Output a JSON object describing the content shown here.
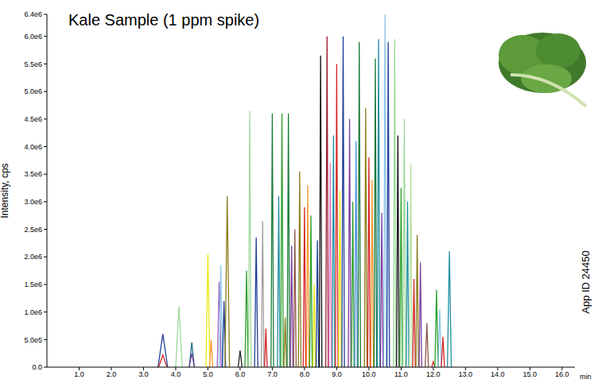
{
  "chart_data": {
    "type": "line",
    "title": "Kale Sample (1 ppm spike)",
    "x_label": "min",
    "y_label": "Intensity, cps",
    "annotations": [
      "App ID 24450"
    ],
    "xlim": [
      0,
      16.4
    ],
    "ylim": [
      0,
      6400000
    ],
    "xticks": [
      {
        "value": 1,
        "label": "1.0"
      },
      {
        "value": 2,
        "label": "2.0"
      },
      {
        "value": 3,
        "label": "3.0"
      },
      {
        "value": 4,
        "label": "4.0"
      },
      {
        "value": 5,
        "label": "5.0"
      },
      {
        "value": 6,
        "label": "6.0"
      },
      {
        "value": 7,
        "label": "7.0"
      },
      {
        "value": 8,
        "label": "8.0"
      },
      {
        "value": 9,
        "label": "9.0"
      },
      {
        "value": 10,
        "label": "10.0"
      },
      {
        "value": 11,
        "label": "11.0"
      },
      {
        "value": 12,
        "label": "12.0"
      },
      {
        "value": 13,
        "label": "13.0"
      },
      {
        "value": 14,
        "label": "14.0"
      },
      {
        "value": 15,
        "label": "15.0"
      },
      {
        "value": 16,
        "label": "16.0"
      }
    ],
    "yticks": [
      {
        "value": 0,
        "label": "0.0"
      },
      {
        "value": 500000,
        "label": "5.0e5"
      },
      {
        "value": 1000000,
        "label": "1.0e6"
      },
      {
        "value": 1500000,
        "label": "1.5e6"
      },
      {
        "value": 2000000,
        "label": "2.0e6"
      },
      {
        "value": 2500000,
        "label": "2.5e6"
      },
      {
        "value": 3000000,
        "label": "3.0e6"
      },
      {
        "value": 3500000,
        "label": "3.5e6"
      },
      {
        "value": 4000000,
        "label": "4.0e6"
      },
      {
        "value": 4500000,
        "label": "4.5e6"
      },
      {
        "value": 5000000,
        "label": "5.0e6"
      },
      {
        "value": 5500000,
        "label": "5.5e6"
      },
      {
        "value": 6000000,
        "label": "6.0e6"
      },
      {
        "value": 6400000,
        "label": "6.4e6"
      }
    ],
    "grid": false,
    "series": [
      {
        "color": "#1f3f99",
        "x": [
          3.45,
          3.6,
          3.75
        ],
        "values": [
          0,
          600000,
          0
        ]
      },
      {
        "color": "#d62728",
        "x": [
          3.47,
          3.6,
          3.73
        ],
        "values": [
          0,
          220000,
          0
        ]
      },
      {
        "color": "#9ed99a",
        "x": [
          4.0,
          4.1,
          4.2
        ],
        "values": [
          0,
          1100000,
          0
        ]
      },
      {
        "color": "#1f6f8b",
        "x": [
          4.42,
          4.5,
          4.58
        ],
        "values": [
          0,
          450000,
          0
        ]
      },
      {
        "color": "#7b3fa0",
        "x": [
          4.42,
          4.5,
          4.58
        ],
        "values": [
          0,
          250000,
          0
        ]
      },
      {
        "color": "#e8e816",
        "x": [
          4.94,
          5.0,
          5.06
        ],
        "values": [
          0,
          2050000,
          0
        ]
      },
      {
        "color": "#ff9933",
        "x": [
          5.05,
          5.1,
          5.15
        ],
        "values": [
          0,
          500000,
          0
        ]
      },
      {
        "color": "#9c5fc7",
        "x": [
          5.29,
          5.35,
          5.41
        ],
        "values": [
          0,
          1550000,
          0
        ]
      },
      {
        "color": "#8ec5e8",
        "x": [
          5.35,
          5.4,
          5.45
        ],
        "values": [
          0,
          1850000,
          0
        ]
      },
      {
        "color": "#1f3f99",
        "x": [
          5.45,
          5.5,
          5.55
        ],
        "values": [
          0,
          1200000,
          0
        ]
      },
      {
        "color": "#8b7d1a",
        "x": [
          5.53,
          5.6,
          5.67
        ],
        "values": [
          0,
          3100000,
          0
        ]
      },
      {
        "color": "#222222",
        "x": [
          5.94,
          6.0,
          6.06
        ],
        "values": [
          0,
          300000,
          0
        ]
      },
      {
        "color": "#2ca02c",
        "x": [
          6.15,
          6.2,
          6.25
        ],
        "values": [
          0,
          1750000,
          0
        ]
      },
      {
        "color": "#9ed99a",
        "x": [
          6.26,
          6.3,
          6.34
        ],
        "values": [
          0,
          4650000,
          0
        ]
      },
      {
        "color": "#1f3f99",
        "x": [
          6.45,
          6.5,
          6.55
        ],
        "values": [
          0,
          2350000,
          0
        ]
      },
      {
        "color": "#a0a0a0",
        "x": [
          6.66,
          6.7,
          6.74
        ],
        "values": [
          0,
          2650000,
          0
        ]
      },
      {
        "color": "#d62728",
        "x": [
          6.76,
          6.8,
          6.84
        ],
        "values": [
          0,
          700000,
          0
        ]
      },
      {
        "color": "#1a7a3a",
        "x": [
          6.96,
          7.0,
          7.04
        ],
        "values": [
          0,
          4600000,
          0
        ]
      },
      {
        "color": "#1f8fa0",
        "x": [
          7.16,
          7.2,
          7.24
        ],
        "values": [
          0,
          3100000,
          0
        ]
      },
      {
        "color": "#2ca02c",
        "x": [
          7.26,
          7.3,
          7.34
        ],
        "values": [
          0,
          4600000,
          0
        ]
      },
      {
        "color": "#8b7d1a",
        "x": [
          7.36,
          7.4,
          7.44
        ],
        "values": [
          0,
          900000,
          0
        ]
      },
      {
        "color": "#1a7a3a",
        "x": [
          7.46,
          7.5,
          7.54
        ],
        "values": [
          0,
          4600000,
          0
        ]
      },
      {
        "color": "#7b3fa0",
        "x": [
          7.56,
          7.6,
          7.64
        ],
        "values": [
          0,
          2200000,
          0
        ]
      },
      {
        "color": "#8c564b",
        "x": [
          7.66,
          7.7,
          7.74
        ],
        "values": [
          0,
          2500000,
          0
        ]
      },
      {
        "color": "#8b7d1a",
        "x": [
          7.81,
          7.85,
          7.89
        ],
        "values": [
          0,
          3550000,
          0
        ]
      },
      {
        "color": "#d62728",
        "x": [
          7.96,
          8.0,
          8.04
        ],
        "values": [
          0,
          2900000,
          0
        ]
      },
      {
        "color": "#ff9933",
        "x": [
          8.06,
          8.1,
          8.14
        ],
        "values": [
          0,
          3300000,
          0
        ]
      },
      {
        "color": "#2ca02c",
        "x": [
          8.16,
          8.2,
          8.24
        ],
        "values": [
          0,
          2750000,
          0
        ]
      },
      {
        "color": "#e8e816",
        "x": [
          8.26,
          8.3,
          8.34
        ],
        "values": [
          0,
          1500000,
          0
        ]
      },
      {
        "color": "#1f3f99",
        "x": [
          8.36,
          8.4,
          8.44
        ],
        "values": [
          0,
          2300000,
          0
        ]
      },
      {
        "color": "#111111",
        "x": [
          8.46,
          8.5,
          8.54
        ],
        "values": [
          0,
          5650000,
          0
        ]
      },
      {
        "color": "#9b1c31",
        "x": [
          8.66,
          8.7,
          8.74
        ],
        "values": [
          0,
          6000000,
          0
        ]
      },
      {
        "color": "#e377c2",
        "x": [
          8.76,
          8.8,
          8.84
        ],
        "values": [
          0,
          3700000,
          0
        ]
      },
      {
        "color": "#1f8fa0",
        "x": [
          8.86,
          8.9,
          8.94
        ],
        "values": [
          0,
          4200000,
          0
        ]
      },
      {
        "color": "#d62728",
        "x": [
          8.96,
          9.0,
          9.04
        ],
        "values": [
          0,
          5500000,
          0
        ]
      },
      {
        "color": "#e8e816",
        "x": [
          9.06,
          9.1,
          9.14
        ],
        "values": [
          0,
          3200000,
          0
        ]
      },
      {
        "color": "#1f3f99",
        "x": [
          9.16,
          9.2,
          9.24
        ],
        "values": [
          0,
          6000000,
          0
        ]
      },
      {
        "color": "#7b3fa0",
        "x": [
          9.36,
          9.4,
          9.44
        ],
        "values": [
          0,
          4500000,
          0
        ]
      },
      {
        "color": "#2ca02c",
        "x": [
          9.46,
          9.5,
          9.54
        ],
        "values": [
          0,
          3000000,
          0
        ]
      },
      {
        "color": "#4a90d9",
        "x": [
          9.56,
          9.6,
          9.64
        ],
        "values": [
          0,
          4100000,
          0
        ]
      },
      {
        "color": "#1a7a3a",
        "x": [
          9.66,
          9.7,
          9.74
        ],
        "values": [
          0,
          5900000,
          0
        ]
      },
      {
        "color": "#8b7d1a",
        "x": [
          9.86,
          9.9,
          9.94
        ],
        "values": [
          0,
          4700000,
          0
        ]
      },
      {
        "color": "#d62728",
        "x": [
          9.96,
          10.0,
          10.04
        ],
        "values": [
          0,
          3800000,
          0
        ]
      },
      {
        "color": "#ff9933",
        "x": [
          10.06,
          10.1,
          10.14
        ],
        "values": [
          0,
          3400000,
          0
        ]
      },
      {
        "color": "#1a7a3a",
        "x": [
          10.16,
          10.2,
          10.24
        ],
        "values": [
          0,
          5600000,
          0
        ]
      },
      {
        "color": "#1f8fa0",
        "x": [
          10.26,
          10.3,
          10.34
        ],
        "values": [
          0,
          5950000,
          0
        ]
      },
      {
        "color": "#7b3fa0",
        "x": [
          10.36,
          10.4,
          10.44
        ],
        "values": [
          0,
          2800000,
          0
        ]
      },
      {
        "color": "#8ec5e8",
        "x": [
          10.46,
          10.5,
          10.54
        ],
        "values": [
          0,
          6400000,
          0
        ]
      },
      {
        "color": "#1f3f99",
        "x": [
          10.56,
          10.6,
          10.64
        ],
        "values": [
          0,
          5900000,
          0
        ]
      },
      {
        "color": "#9ed99a",
        "x": [
          10.76,
          10.8,
          10.84
        ],
        "values": [
          0,
          5950000,
          0
        ]
      },
      {
        "color": "#111111",
        "x": [
          10.86,
          10.9,
          10.94
        ],
        "values": [
          0,
          4200000,
          0
        ]
      },
      {
        "color": "#2ca02c",
        "x": [
          10.96,
          11.0,
          11.04
        ],
        "values": [
          0,
          3250000,
          0
        ]
      },
      {
        "color": "#9ed99a",
        "x": [
          11.06,
          11.1,
          11.14
        ],
        "values": [
          0,
          4500000,
          0
        ]
      },
      {
        "color": "#1f8fa0",
        "x": [
          11.16,
          11.2,
          11.24
        ],
        "values": [
          0,
          3000000,
          0
        ]
      },
      {
        "color": "#b5e0a0",
        "x": [
          11.26,
          11.3,
          11.34
        ],
        "values": [
          0,
          3700000,
          0
        ]
      },
      {
        "color": "#d62728",
        "x": [
          11.36,
          11.4,
          11.44
        ],
        "values": [
          0,
          1600000,
          0
        ]
      },
      {
        "color": "#8b7d1a",
        "x": [
          11.46,
          11.5,
          11.54
        ],
        "values": [
          0,
          2400000,
          0
        ]
      },
      {
        "color": "#7b3fa0",
        "x": [
          11.56,
          11.6,
          11.64
        ],
        "values": [
          0,
          1900000,
          0
        ]
      },
      {
        "color": "#8c564b",
        "x": [
          11.75,
          11.8,
          11.85
        ],
        "values": [
          0,
          800000,
          0
        ]
      },
      {
        "color": "#d62728",
        "x": [
          11.95,
          12.0,
          12.05
        ],
        "values": [
          0,
          100000,
          0
        ]
      },
      {
        "color": "#2ca02c",
        "x": [
          12.05,
          12.1,
          12.15
        ],
        "values": [
          0,
          1400000,
          0
        ]
      },
      {
        "color": "#8ec5e8",
        "x": [
          12.15,
          12.2,
          12.25
        ],
        "values": [
          0,
          1050000,
          0
        ]
      },
      {
        "color": "#d62728",
        "x": [
          12.25,
          12.3,
          12.35
        ],
        "values": [
          0,
          550000,
          0
        ]
      },
      {
        "color": "#1f8fa0",
        "x": [
          12.44,
          12.5,
          12.56
        ],
        "values": [
          0,
          2100000,
          0
        ]
      }
    ]
  }
}
